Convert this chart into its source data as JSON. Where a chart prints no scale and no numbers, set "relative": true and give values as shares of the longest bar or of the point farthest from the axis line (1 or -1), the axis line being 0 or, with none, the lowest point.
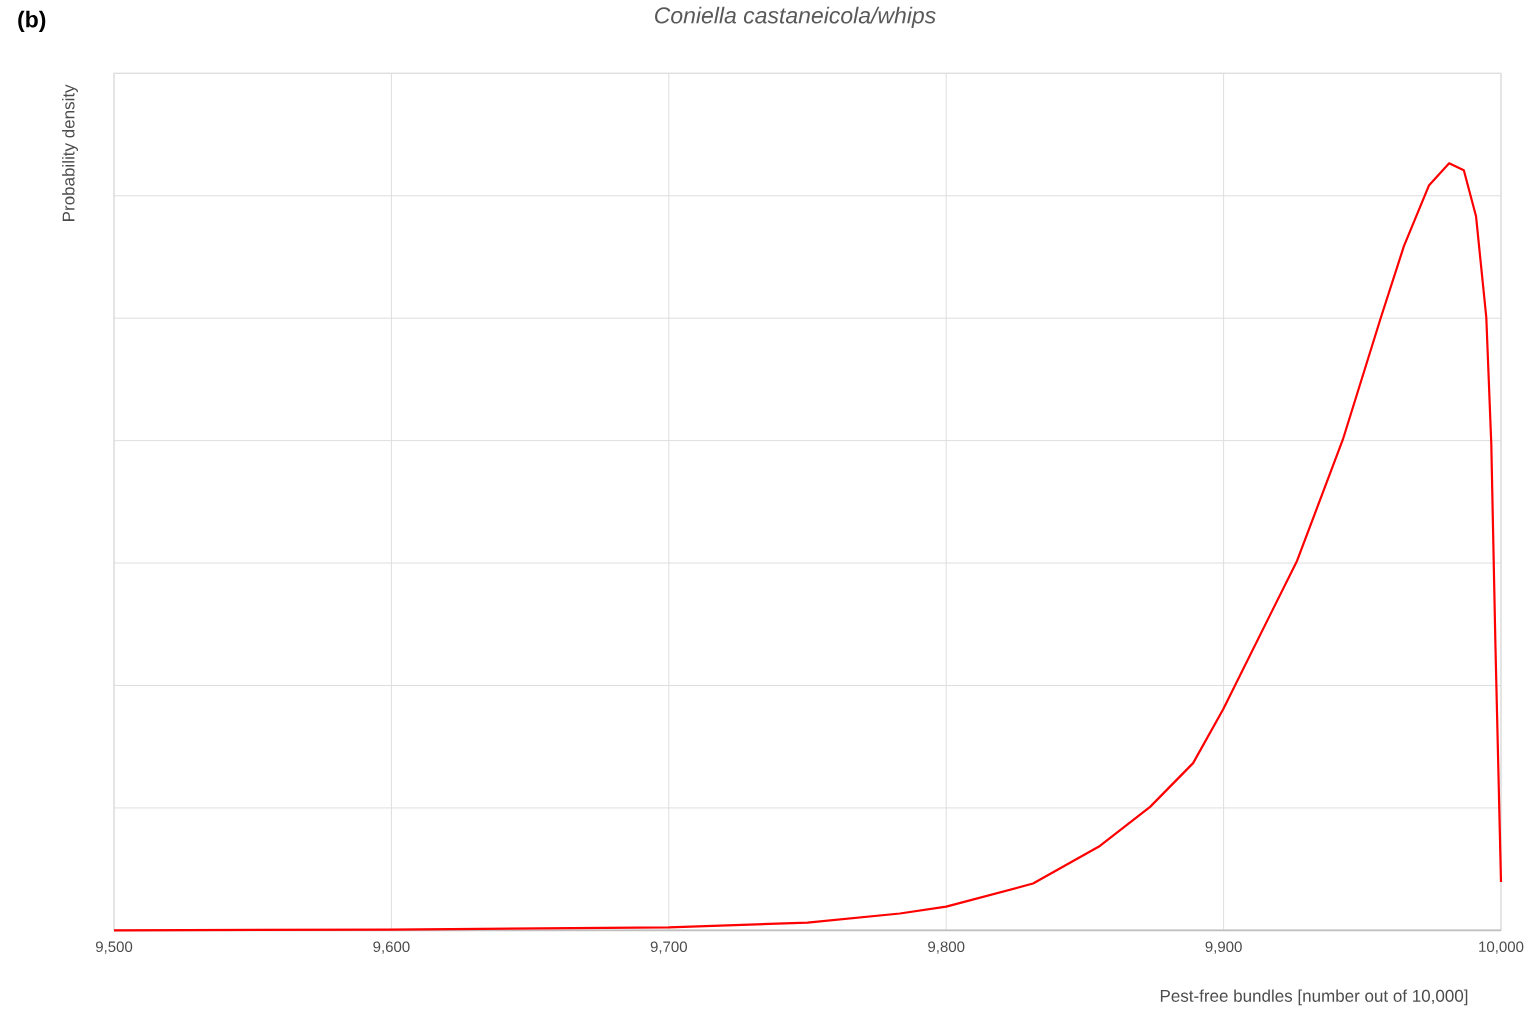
{
  "chart_data": {
    "type": "line",
    "title": "*Coniella castaneicola/whips*",
    "xlabel": "Pest-free bundles [number out of 10,000]",
    "ylabel": "Probability density",
    "annotations": [
      "**(b)**"
    ],
    "relative": true,
    "xlim": [
      9500,
      10000
    ],
    "xticks": [
      {
        "value": 9500,
        "label": "9,500"
      },
      {
        "value": 9600,
        "label": "9,600"
      },
      {
        "value": 9700,
        "label": "9,700"
      },
      {
        "value": 9800,
        "label": "9,800"
      },
      {
        "value": 9900,
        "label": "9,900"
      },
      {
        "value": 10000,
        "label": "10,000"
      }
    ],
    "grid": true,
    "marker": "none",
    "line_style": "solid",
    "series": [
      {
        "color": "#ff0000",
        "x": [
          9500,
          9600,
          9700,
          9750,
          9783.3,
          9800,
          9831.3,
          9855.4,
          9873.5,
          9889,
          9899.8,
          9926.5,
          9943,
          9956.7,
          9965,
          9974,
          9981.3,
          9986.6,
          9991,
          9994.7,
          9996.5,
          9998,
          10000
        ],
        "values": [
          0,
          0.001,
          0.004,
          0.01,
          0.022,
          0.031,
          0.061,
          0.11,
          0.161,
          0.218,
          0.288,
          0.482,
          0.64,
          0.799,
          0.892,
          0.971,
          1.0,
          0.991,
          0.931,
          0.799,
          0.634,
          0.37,
          0.063
        ]
      }
    ]
  }
}
